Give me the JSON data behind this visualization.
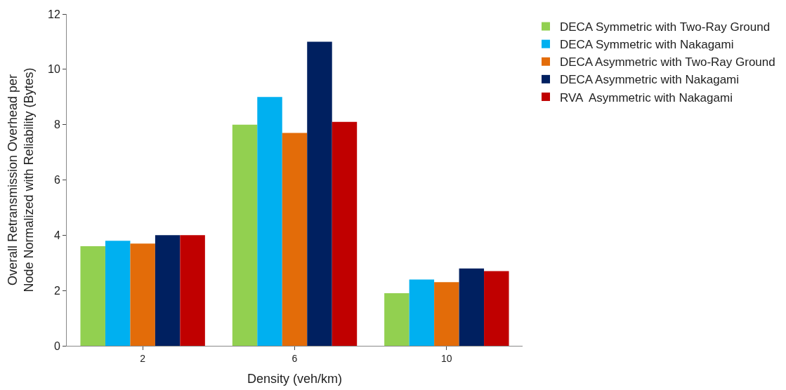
{
  "chart_data": {
    "type": "bar",
    "xlabel": "Density (veh/km)",
    "ylabel": "Overall Retransmission Overhead per Node Normalized with Reliability (Bytes)",
    "categories": [
      "2",
      "6",
      "10"
    ],
    "series": [
      {
        "name": "DECA Symmetric with Two-Ray Ground",
        "color": "#92d050",
        "values": [
          3.6,
          8.0,
          1.9
        ]
      },
      {
        "name": "DECA Symmetric with Nakagami",
        "color": "#00b0f0",
        "values": [
          3.8,
          9.0,
          2.4
        ]
      },
      {
        "name": "DECA Asymmetric with Two-Ray Ground",
        "color": "#e36c09",
        "values": [
          3.7,
          7.7,
          2.3
        ]
      },
      {
        "name": "DECA Asymmetric with Nakagami",
        "color": "#002060",
        "values": [
          4.0,
          11.0,
          2.8
        ]
      },
      {
        "name": "RVA  Asymmetric with Nakagami",
        "color": "#c00000",
        "values": [
          4.0,
          8.1,
          2.7
        ]
      }
    ],
    "ylim": [
      0,
      12
    ],
    "yticks": [
      0,
      2,
      4,
      6,
      8,
      10,
      12
    ],
    "legend": "right"
  }
}
